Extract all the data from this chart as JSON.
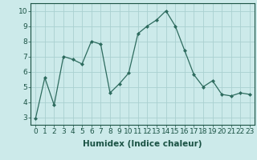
{
  "x": [
    0,
    1,
    2,
    3,
    4,
    5,
    6,
    7,
    8,
    9,
    10,
    11,
    12,
    13,
    14,
    15,
    16,
    17,
    18,
    19,
    20,
    21,
    22,
    23
  ],
  "y": [
    2.9,
    5.6,
    3.8,
    7.0,
    6.8,
    6.5,
    8.0,
    7.8,
    4.6,
    5.2,
    5.9,
    8.5,
    9.0,
    9.4,
    10.0,
    9.0,
    7.4,
    5.8,
    5.0,
    5.4,
    4.5,
    4.4,
    4.6,
    4.5
  ],
  "line_color": "#2d6b5e",
  "marker": "D",
  "marker_size": 2.0,
  "bg_color": "#cceaea",
  "grid_color": "#aad0d0",
  "xlabel": "Humidex (Indice chaleur)",
  "xlim": [
    -0.5,
    23.5
  ],
  "ylim": [
    2.5,
    10.5
  ],
  "yticks": [
    3,
    4,
    5,
    6,
    7,
    8,
    9,
    10
  ],
  "xticks": [
    0,
    1,
    2,
    3,
    4,
    5,
    6,
    7,
    8,
    9,
    10,
    11,
    12,
    13,
    14,
    15,
    16,
    17,
    18,
    19,
    20,
    21,
    22,
    23
  ],
  "tick_color": "#1a5244",
  "label_fontsize": 7.5,
  "tick_fontsize": 6.5
}
